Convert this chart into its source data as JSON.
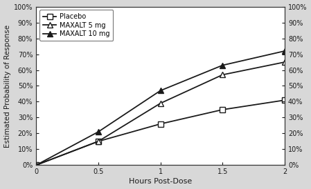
{
  "x": [
    0,
    0.5,
    1.0,
    1.5,
    2.0
  ],
  "placebo": [
    0,
    0.15,
    0.26,
    0.35,
    0.41
  ],
  "maxalt_5mg": [
    0,
    0.15,
    0.39,
    0.57,
    0.65
  ],
  "maxalt_10mg": [
    0,
    0.21,
    0.47,
    0.63,
    0.72
  ],
  "placebo_label": "Placebo",
  "maxalt5_label": "MAXALT 5 mg",
  "maxalt10_label": "MAXALT 10 mg",
  "xlabel": "Hours Post-Dose",
  "ylabel": "Estimated Probability of Response",
  "xlim": [
    0,
    2.0
  ],
  "ylim": [
    0,
    1.0
  ],
  "xticks": [
    0,
    0.5,
    1.0,
    1.5,
    2.0
  ],
  "yticks": [
    0,
    0.1,
    0.2,
    0.3,
    0.4,
    0.5,
    0.6,
    0.7,
    0.8,
    0.9,
    1.0
  ],
  "bg_color": "#d8d8d8",
  "line_color": "#1a1a1a",
  "plot_bg": "#ffffff"
}
